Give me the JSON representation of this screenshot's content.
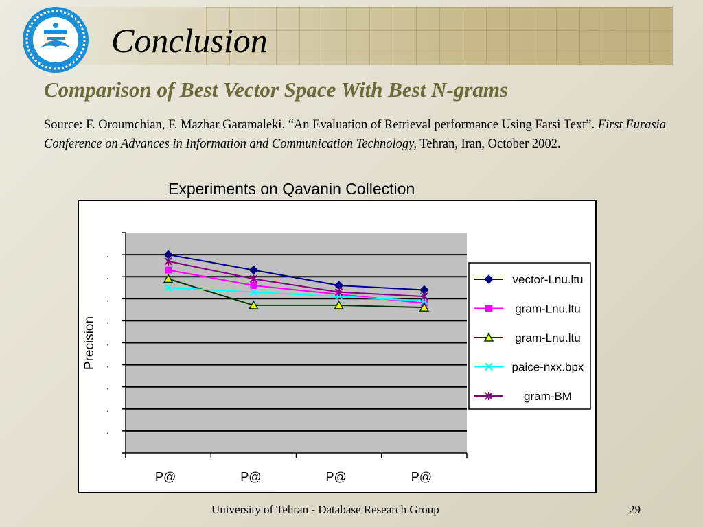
{
  "slide": {
    "title": "Conclusion",
    "subtitle": "Comparison of Best Vector Space With Best N-grams",
    "source_prefix": "Source: F. Oroumchian, F. Mazhar Garamaleki. “An Evaluation of Retrieval performance Using Farsi Text”. ",
    "source_italic": "First Eurasia Conference on Advances in Information and Communication Technology,",
    "source_suffix": " Tehran, Iran, October  2002.",
    "footer": "University  of Tehran - Database Research Group",
    "page_number": "29",
    "logo_icon": "university-of-tehran-seal"
  },
  "chart_data": {
    "type": "line",
    "title": "Experiments on Qavanin Collection",
    "xlabel": "",
    "ylabel": "Precision",
    "categories": [
      "P@",
      "P@",
      "P@",
      "P@"
    ],
    "y_tick_labels": [
      ".",
      ".",
      ".",
      ".",
      ".",
      ".",
      ".",
      ".",
      ".",
      "."
    ],
    "ylim": [
      0,
      1
    ],
    "grid": true,
    "legend_position": "right",
    "plot_background": "#c0c0c0",
    "series": [
      {
        "name": "vector-Lnu.ltu",
        "color": "#000080",
        "marker": "diamond",
        "values": [
          0.9,
          0.83,
          0.76,
          0.74
        ]
      },
      {
        "name": "gram-Lnu.ltu",
        "color": "#ff00ff",
        "marker": "square",
        "values": [
          0.83,
          0.76,
          0.72,
          0.68
        ]
      },
      {
        "name": "gram-Lnu.ltu",
        "color": "#003300",
        "marker": "triangle",
        "values": [
          0.79,
          0.67,
          0.67,
          0.66
        ]
      },
      {
        "name": "paice-nxx.bpx",
        "color": "#00ffff",
        "marker": "x",
        "values": [
          0.75,
          0.73,
          0.71,
          0.69
        ]
      },
      {
        "name": "gram-BM",
        "color": "#800080",
        "marker": "star",
        "values": [
          0.87,
          0.79,
          0.73,
          0.71
        ]
      }
    ]
  }
}
